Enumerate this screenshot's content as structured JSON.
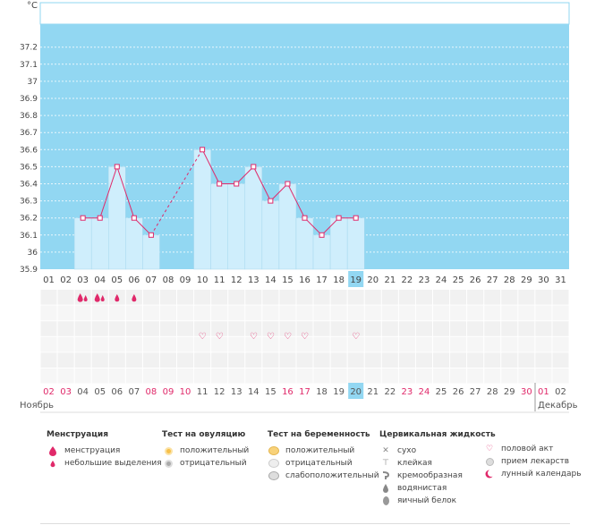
{
  "chart_data": {
    "type": "bar",
    "unit_label": "°C",
    "ylim": [
      35.9,
      37.3
    ],
    "yticks": [
      "37.2",
      "37.1",
      "37",
      "36.9",
      "36.8",
      "36.7",
      "36.6",
      "36.5",
      "36.4",
      "36.3",
      "36.2",
      "36.1",
      "36",
      "35.9"
    ],
    "days_top": [
      "01",
      "02",
      "03",
      "04",
      "05",
      "06",
      "07",
      "08",
      "09",
      "10",
      "11",
      "12",
      "13",
      "14",
      "15",
      "16",
      "17",
      "18",
      "19",
      "20",
      "21",
      "22",
      "23",
      "24",
      "25",
      "26",
      "27",
      "28",
      "29",
      "30",
      "31"
    ],
    "days_bottom": [
      "02",
      "03",
      "04",
      "05",
      "06",
      "07",
      "08",
      "09",
      "10",
      "11",
      "12",
      "13",
      "14",
      "15",
      "16",
      "17",
      "18",
      "19",
      "20",
      "21",
      "22",
      "23",
      "24",
      "25",
      "26",
      "27",
      "28",
      "29",
      "30",
      "01",
      "02"
    ],
    "bottom_red_idx": [
      0,
      1,
      6,
      7,
      8,
      14,
      15,
      21,
      22,
      28,
      29
    ],
    "highlight_idx": 18,
    "temperatures": [
      null,
      null,
      36.2,
      36.2,
      36.5,
      36.2,
      36.1,
      null,
      null,
      36.6,
      36.4,
      36.4,
      36.5,
      36.3,
      36.4,
      36.2,
      36.1,
      36.2,
      36.2,
      null,
      null,
      null,
      null,
      null,
      null,
      null,
      null,
      null,
      null,
      null,
      null
    ],
    "dashed_segments": [
      [
        6,
        9
      ]
    ],
    "menstruation": [
      {
        "idx": 2,
        "kind": "menstruation"
      },
      {
        "idx": 3,
        "kind": "menstruation"
      },
      {
        "idx": 4,
        "kind": "spotting"
      },
      {
        "idx": 5,
        "kind": "spotting"
      }
    ],
    "intercourse_idx": [
      9,
      10,
      12,
      13,
      14,
      15,
      18
    ],
    "colors": {
      "band": "#92d7f2",
      "bar": "#cfeefc",
      "bar_edge": "#a6d8ee",
      "line": "#e0296a",
      "dashed": "#e0296a",
      "grid": "#ffffff",
      "highlight": "#92d7f2",
      "red_day": "#e0296a",
      "plain_day": "#555555",
      "heart": "#e0296a"
    }
  },
  "months": {
    "left": "Ноябрь",
    "right": "Декабрь"
  },
  "legend": {
    "menstruation": {
      "title": "Менструация",
      "items": [
        "менструация",
        "небольшие выделения"
      ]
    },
    "ovulation": {
      "title": "Тест на овуляцию",
      "items": [
        "положительный",
        "отрицательный"
      ]
    },
    "pregnancy": {
      "title": "Тест на беременность",
      "items": [
        "положительный",
        "отрицательный",
        "слабоположительный"
      ]
    },
    "cervical": {
      "title": "Цервикальная жидкость",
      "items": [
        "сухо",
        "клейкая",
        "кремообразная",
        "водянистая",
        "яичный белок"
      ]
    },
    "other": {
      "items": [
        "половой акт",
        "прием лекарств",
        "лунный календарь"
      ]
    }
  },
  "icons": [
    "drop-icon",
    "small-drop-icon",
    "ovulation-positive-icon",
    "ovulation-negative-icon",
    "pregnancy-positive-icon",
    "pregnancy-negative-icon",
    "pregnancy-weak-icon",
    "dry-icon",
    "sticky-icon",
    "creamy-icon",
    "watery-icon",
    "egg-white-icon",
    "heart-icon",
    "pill-icon",
    "moon-icon"
  ]
}
